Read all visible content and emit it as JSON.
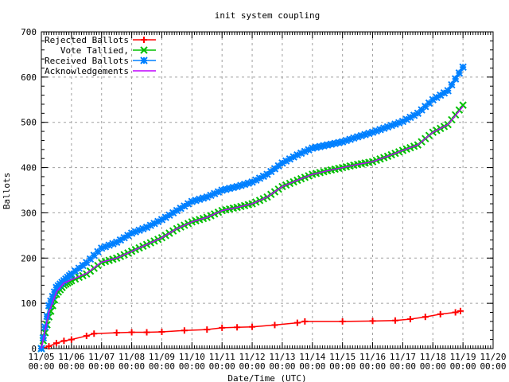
{
  "chart_data": {
    "type": "line",
    "title": "init system coupling",
    "xlabel": "Date/Time (UTC)",
    "ylabel": "Ballots",
    "ylim": [
      0,
      700
    ],
    "xlim": [
      "11/05 00:00",
      "11/20 00:00"
    ],
    "grid": true,
    "legend_placement": "top-left",
    "yticks": [
      "0",
      "100",
      "200",
      "300",
      "400",
      "500",
      "600",
      "700"
    ],
    "xticks": [
      [
        "11/05",
        "00:00"
      ],
      [
        "11/06",
        "00:00"
      ],
      [
        "11/07",
        "00:00"
      ],
      [
        "11/08",
        "00:00"
      ],
      [
        "11/09",
        "00:00"
      ],
      [
        "11/10",
        "00:00"
      ],
      [
        "11/11",
        "00:00"
      ],
      [
        "11/12",
        "00:00"
      ],
      [
        "11/13",
        "00:00"
      ],
      [
        "11/14",
        "00:00"
      ],
      [
        "11/15",
        "00:00"
      ],
      [
        "11/16",
        "00:00"
      ],
      [
        "11/17",
        "00:00"
      ],
      [
        "11/18",
        "00:00"
      ],
      [
        "11/19",
        "00:00"
      ],
      [
        "11/20",
        "00:00"
      ]
    ],
    "series": [
      {
        "name": "Rejected Ballots",
        "color": "#ff0000",
        "marker": "plus",
        "x": [
          "11/05 00:00",
          "11/05 06:00",
          "11/05 12:00",
          "11/05 18:00",
          "11/06 00:00",
          "11/06 12:00",
          "11/06 18:00",
          "11/07 12:00",
          "11/08 00:00",
          "11/08 12:00",
          "11/09 00:00",
          "11/09 18:00",
          "11/10 12:00",
          "11/11 00:00",
          "11/11 12:00",
          "11/12 00:00",
          "11/12 18:00",
          "11/13 12:00",
          "11/13 18:00",
          "11/15 00:00",
          "11/16 00:00",
          "11/16 18:00",
          "11/17 06:00",
          "11/17 18:00",
          "11/18 06:00",
          "11/18 18:00",
          "11/18 22:00"
        ],
        "y": [
          0,
          5,
          12,
          17,
          20,
          28,
          33,
          35,
          36,
          36,
          37,
          40,
          42,
          46,
          47,
          48,
          52,
          57,
          60,
          60,
          61,
          62,
          65,
          70,
          76,
          80,
          83
        ]
      },
      {
        "name": "Vote Tallied,",
        "color": "#00c000",
        "marker": "cross",
        "x": [
          "11/05 00:00",
          "11/05 06:00",
          "11/05 12:00",
          "11/05 18:00",
          "11/06 00:00",
          "11/06 12:00",
          "11/07 00:00",
          "11/07 12:00",
          "11/08 00:00",
          "11/08 12:00",
          "11/09 00:00",
          "11/09 12:00",
          "11/10 00:00",
          "11/10 12:00",
          "11/11 00:00",
          "11/11 12:00",
          "11/12 00:00",
          "11/12 12:00",
          "11/13 00:00",
          "11/13 12:00",
          "11/14 00:00",
          "11/14 12:00",
          "11/15 00:00",
          "11/15 12:00",
          "11/16 00:00",
          "11/16 12:00",
          "11/17 00:00",
          "11/17 12:00",
          "11/18 00:00",
          "11/18 12:00",
          "11/19 00:00"
        ],
        "y": [
          0,
          70,
          120,
          140,
          150,
          165,
          190,
          200,
          215,
          230,
          245,
          265,
          280,
          290,
          305,
          312,
          320,
          335,
          358,
          372,
          385,
          393,
          400,
          407,
          413,
          425,
          438,
          450,
          478,
          495,
          538
        ]
      },
      {
        "name": "Received Ballots",
        "color": "#0080ff",
        "marker": "star",
        "x": [
          "11/05 00:00",
          "11/05 06:00",
          "11/05 12:00",
          "11/05 18:00",
          "11/06 00:00",
          "11/06 12:00",
          "11/07 00:00",
          "11/07 12:00",
          "11/08 00:00",
          "11/08 12:00",
          "11/09 00:00",
          "11/09 12:00",
          "11/10 00:00",
          "11/10 12:00",
          "11/11 00:00",
          "11/11 12:00",
          "11/12 00:00",
          "11/12 12:00",
          "11/13 00:00",
          "11/13 12:00",
          "11/14 00:00",
          "11/14 12:00",
          "11/15 00:00",
          "11/15 12:00",
          "11/16 00:00",
          "11/16 12:00",
          "11/17 00:00",
          "11/17 12:00",
          "11/18 00:00",
          "11/18 12:00",
          "11/19 00:00"
        ],
        "y": [
          0,
          95,
          135,
          150,
          165,
          190,
          222,
          235,
          255,
          268,
          285,
          305,
          325,
          335,
          350,
          358,
          368,
          385,
          410,
          428,
          443,
          450,
          457,
          468,
          478,
          490,
          502,
          520,
          550,
          570,
          622
        ]
      },
      {
        "name": "Acknowledgements",
        "color": "#c000ff",
        "marker": "none",
        "x": [
          "11/05 00:00",
          "11/05 06:00",
          "11/05 12:00",
          "11/05 18:00",
          "11/06 00:00",
          "11/06 12:00",
          "11/07 00:00",
          "11/07 12:00",
          "11/08 00:00",
          "11/08 12:00",
          "11/09 00:00",
          "11/09 12:00",
          "11/10 00:00",
          "11/10 12:00",
          "11/11 00:00",
          "11/11 12:00",
          "11/12 00:00",
          "11/12 12:00",
          "11/13 00:00",
          "11/13 12:00",
          "11/14 00:00",
          "11/14 12:00",
          "11/15 00:00",
          "11/15 12:00",
          "11/16 00:00",
          "11/16 12:00",
          "11/17 00:00",
          "11/17 12:00",
          "11/18 00:00",
          "11/18 12:00",
          "11/19 00:00"
        ],
        "y": [
          0,
          80,
          125,
          145,
          152,
          166,
          191,
          200,
          215,
          230,
          245,
          265,
          280,
          290,
          305,
          312,
          320,
          335,
          358,
          372,
          385,
          393,
          400,
          407,
          413,
          425,
          438,
          450,
          478,
          495,
          535
        ]
      }
    ]
  }
}
